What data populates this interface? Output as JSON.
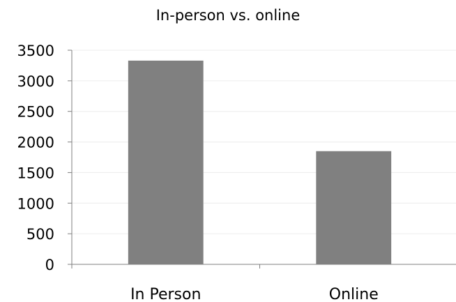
{
  "chart_data": {
    "type": "bar",
    "title": "In-person vs. online",
    "xlabel": "",
    "ylabel": "",
    "categories": [
      "In Person",
      "Online"
    ],
    "values": [
      3330,
      1850
    ],
    "ylim": [
      0,
      3500
    ],
    "yticks": [
      0,
      500,
      1000,
      1500,
      2000,
      2500,
      3000,
      3500
    ],
    "grid": true,
    "legend": "none",
    "colors": {
      "bar": "#808080",
      "grid": "#ececec",
      "axis": "#7f7f7f"
    }
  }
}
